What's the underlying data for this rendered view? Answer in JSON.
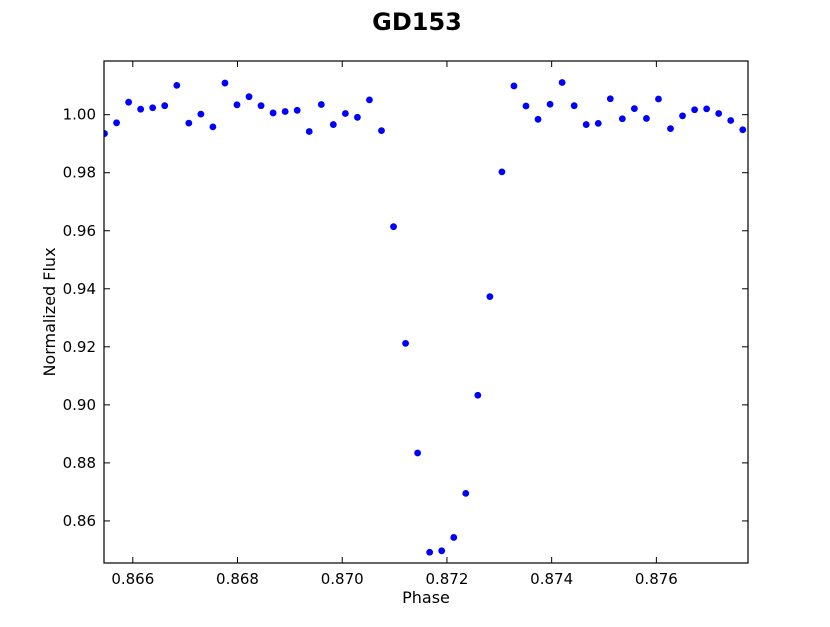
{
  "chart_data": {
    "type": "scatter",
    "title": "GD153",
    "xlabel": "Phase",
    "ylabel": "Normalized Flux",
    "xlim": [
      0.86545,
      0.87775
    ],
    "ylim": [
      0.8455,
      1.0185
    ],
    "xticks": [
      0.866,
      0.868,
      0.87,
      0.872,
      0.874,
      0.876
    ],
    "xtick_labels": [
      "0.866",
      "0.868",
      "0.870",
      "0.872",
      "0.874",
      "0.876"
    ],
    "yticks": [
      0.86,
      0.88,
      0.9,
      0.92,
      0.94,
      0.96,
      0.98,
      1.0
    ],
    "ytick_labels": [
      "0.86",
      "0.88",
      "0.90",
      "0.92",
      "0.94",
      "0.96",
      "0.98",
      "1.00"
    ],
    "grid": false,
    "marker_color": "#0000ff",
    "series": [
      {
        "x": [
          0.86546,
          0.86569,
          0.86592,
          0.86615,
          0.86638,
          0.86661,
          0.86684,
          0.86707,
          0.8673,
          0.86753,
          0.86776,
          0.86799,
          0.86822,
          0.86845,
          0.86868,
          0.86891,
          0.86914,
          0.86937,
          0.8696,
          0.86983,
          0.87006,
          0.87029,
          0.87052,
          0.87075,
          0.87098,
          0.87121,
          0.87144,
          0.87167,
          0.8719,
          0.87213,
          0.87236,
          0.87259,
          0.87282,
          0.87305,
          0.87328,
          0.87351,
          0.87374,
          0.87397,
          0.8742,
          0.87443,
          0.87466,
          0.87489,
          0.87512,
          0.87535,
          0.87558,
          0.87581,
          0.87604,
          0.87627,
          0.8765,
          0.87673,
          0.87696,
          0.87719,
          0.87742,
          0.87765
        ],
        "y": [
          0.9935,
          0.9972,
          1.0043,
          1.0019,
          1.0024,
          1.0031,
          1.0101,
          0.9971,
          1.0002,
          0.9958,
          1.0109,
          1.0034,
          1.0062,
          1.0031,
          1.0006,
          1.0011,
          1.0015,
          0.9942,
          1.0035,
          0.9966,
          1.0004,
          0.9991,
          1.0051,
          0.9945,
          0.9614,
          0.9212,
          0.8834,
          0.8492,
          0.8497,
          0.8543,
          0.8695,
          0.9033,
          0.9373,
          0.9803,
          1.0099,
          1.003,
          0.9984,
          1.0036,
          1.0111,
          1.0031,
          0.9966,
          0.997,
          1.0055,
          0.9986,
          1.0021,
          0.9987,
          1.0054,
          0.9952,
          0.9996,
          1.0017,
          1.002,
          1.0004,
          0.998,
          0.9948
        ]
      }
    ]
  }
}
